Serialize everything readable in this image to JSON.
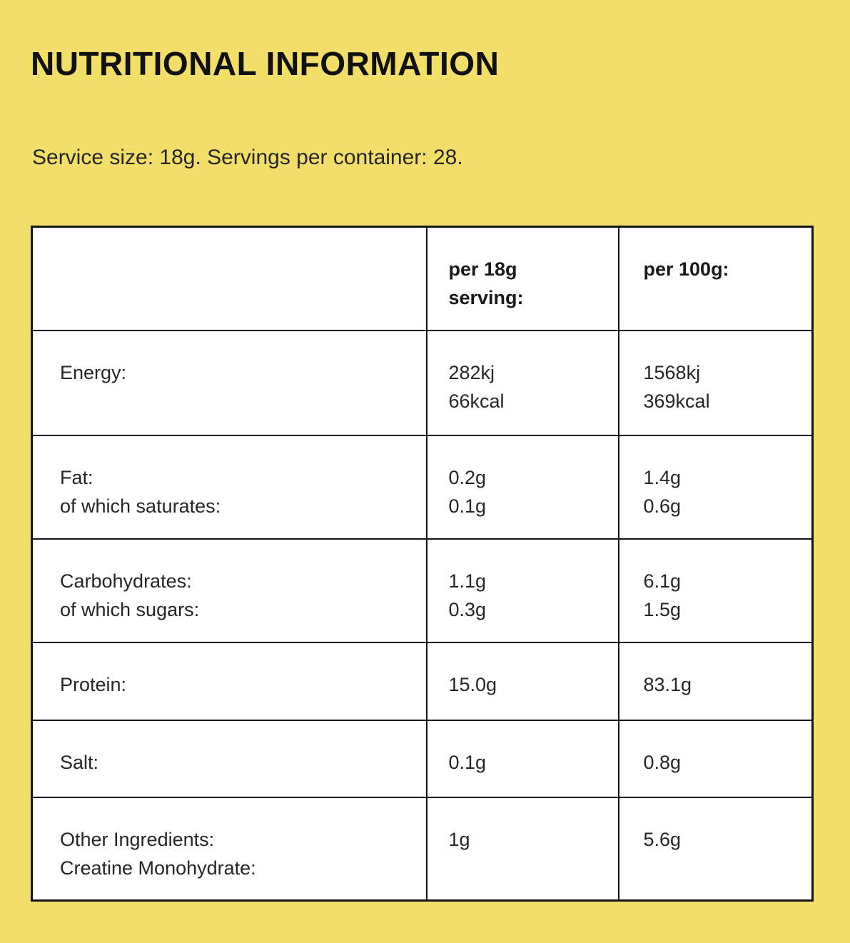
{
  "page": {
    "title": "NUTRITIONAL INFORMATION",
    "subtitle": "Service size: 18g. Servings per container: 28."
  },
  "colors": {
    "background": "#F2DF69",
    "table_background": "#FFFFFF",
    "border": "#141414",
    "text": "#262626",
    "title": "#111111"
  },
  "table": {
    "header": {
      "per_serving_lines": [
        "per 18g",
        "serving:"
      ],
      "per_100g_lines": [
        "per 100g:"
      ]
    },
    "rows": [
      {
        "label_lines": [
          "Energy:"
        ],
        "per_serving_lines": [
          "282kj",
          "66kcal"
        ],
        "per_100g_lines": [
          "1568kj",
          "369kcal"
        ]
      },
      {
        "label_lines": [
          "Fat:",
          "of which saturates:"
        ],
        "per_serving_lines": [
          "0.2g",
          "0.1g"
        ],
        "per_100g_lines": [
          "1.4g",
          "0.6g"
        ]
      },
      {
        "label_lines": [
          "Carbohydrates:",
          "of which sugars:"
        ],
        "per_serving_lines": [
          "1.1g",
          "0.3g"
        ],
        "per_100g_lines": [
          "6.1g",
          "1.5g"
        ]
      },
      {
        "label_lines": [
          "Protein:"
        ],
        "per_serving_lines": [
          "15.0g"
        ],
        "per_100g_lines": [
          "83.1g"
        ]
      },
      {
        "label_lines": [
          "Salt:"
        ],
        "per_serving_lines": [
          "0.1g"
        ],
        "per_100g_lines": [
          "0.8g"
        ]
      },
      {
        "label_lines": [
          "Other Ingredients:",
          "Creatine Monohydrate:"
        ],
        "per_serving_lines": [
          "1g"
        ],
        "per_100g_lines": [
          "5.6g"
        ]
      }
    ]
  }
}
